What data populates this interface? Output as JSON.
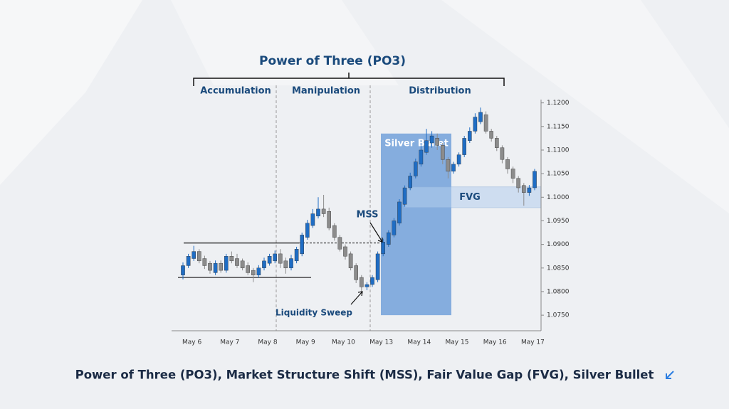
{
  "chart_data": {
    "type": "candlestick",
    "title": "Power of Three (PO3)",
    "phases": [
      "Accumulation",
      "Manipulation",
      "Distribution"
    ],
    "caption": "Power of Three (PO3), Market Structure Shift (MSS), Fair Value Gap (FVG), Silver Bullet",
    "categories": [
      null,
      "May 6",
      null,
      null,
      null,
      null,
      null,
      null,
      "May 7",
      null,
      null,
      null,
      null,
      null,
      null,
      "May 8",
      null,
      null,
      null,
      null,
      null,
      null,
      "May 9",
      null,
      null,
      null,
      null,
      null,
      null,
      "May 10",
      null,
      null,
      null,
      null,
      null,
      null,
      "May 13",
      null,
      null,
      null,
      null,
      null,
      null,
      "May 14",
      null,
      null,
      null,
      null,
      null,
      null,
      "May 15",
      null,
      null,
      null,
      null,
      null,
      null,
      "May 16",
      null,
      null,
      null,
      null,
      null,
      null,
      "May 17",
      null
    ],
    "open": [
      1.0835,
      1.0855,
      1.087,
      1.0885,
      1.087,
      1.086,
      1.084,
      1.086,
      1.0845,
      1.0875,
      1.087,
      1.0865,
      1.0855,
      1.0845,
      1.0835,
      1.085,
      1.086,
      1.0865,
      1.088,
      1.0865,
      1.085,
      1.0865,
      1.088,
      1.0915,
      1.094,
      1.096,
      1.0975,
      1.097,
      1.094,
      1.0915,
      1.0895,
      1.088,
      1.0855,
      1.083,
      1.081,
      1.0815,
      1.0825,
      1.088,
      1.09,
      1.092,
      1.0945,
      1.0985,
      1.102,
      1.1045,
      1.107,
      1.1095,
      1.1115,
      1.1125,
      1.111,
      1.108,
      1.1055,
      1.107,
      1.109,
      1.112,
      1.114,
      1.116,
      1.1175,
      1.114,
      1.1125,
      1.1105,
      1.108,
      1.106,
      1.104,
      1.1025,
      1.101,
      1.102
    ],
    "high": [
      1.0862,
      1.088,
      1.0897,
      1.089,
      1.0876,
      1.0865,
      1.0866,
      1.0866,
      1.088,
      1.0885,
      1.088,
      1.087,
      1.0862,
      1.085,
      1.0856,
      1.0872,
      1.088,
      1.0887,
      1.089,
      1.0872,
      1.0878,
      1.0895,
      1.0925,
      1.0952,
      1.0975,
      1.1,
      1.1005,
      1.0978,
      1.0945,
      1.092,
      1.09,
      1.0885,
      1.086,
      1.0835,
      1.082,
      1.0835,
      1.0885,
      1.0912,
      1.093,
      1.0956,
      1.0996,
      1.1025,
      1.1052,
      1.1082,
      1.111,
      1.1145,
      1.114,
      1.1135,
      1.1115,
      1.1085,
      1.1075,
      1.1095,
      1.113,
      1.1148,
      1.1178,
      1.119,
      1.1182,
      1.1145,
      1.113,
      1.111,
      1.1085,
      1.1065,
      1.1045,
      1.103,
      1.1026,
      1.106
    ],
    "low": [
      1.0826,
      1.085,
      1.0865,
      1.086,
      1.0848,
      1.0838,
      1.0835,
      1.084,
      1.084,
      1.086,
      1.085,
      1.0845,
      1.0835,
      1.082,
      1.083,
      1.0845,
      1.0855,
      1.086,
      1.085,
      1.0838,
      1.0845,
      1.086,
      1.0875,
      1.091,
      1.0935,
      1.0955,
      1.0958,
      1.093,
      1.0908,
      1.0885,
      1.0868,
      1.0845,
      1.0818,
      1.08,
      1.0803,
      1.081,
      1.082,
      1.0875,
      1.0895,
      1.0915,
      1.094,
      1.098,
      1.1015,
      1.104,
      1.1065,
      1.109,
      1.1105,
      1.11,
      1.107,
      1.104,
      1.105,
      1.1065,
      1.1085,
      1.1115,
      1.1135,
      1.1155,
      1.1135,
      1.1118,
      1.1098,
      1.1072,
      1.105,
      1.103,
      1.101,
      1.0982,
      1.1003,
      1.1015
    ],
    "close": [
      1.0855,
      1.0875,
      1.0885,
      1.0865,
      1.0855,
      1.0845,
      1.086,
      1.0845,
      1.0875,
      1.0865,
      1.0855,
      1.085,
      1.084,
      1.0835,
      1.085,
      1.0865,
      1.0875,
      1.088,
      1.086,
      1.085,
      1.087,
      1.089,
      1.092,
      1.0945,
      1.0965,
      1.0975,
      1.0965,
      1.0935,
      1.0915,
      1.089,
      1.0875,
      1.085,
      1.0825,
      1.081,
      1.0815,
      1.083,
      1.088,
      1.0905,
      1.0925,
      1.095,
      1.099,
      1.102,
      1.1045,
      1.1075,
      1.11,
      1.112,
      1.113,
      1.111,
      1.108,
      1.1055,
      1.107,
      1.109,
      1.1125,
      1.114,
      1.117,
      1.118,
      1.114,
      1.1125,
      1.1105,
      1.108,
      1.106,
      1.104,
      1.102,
      1.101,
      1.102,
      1.1055
    ],
    "up_color": "#1f6dc4",
    "down_color": "#8c8c8c",
    "ylim": [
      1.0717,
      1.1207
    ],
    "yticks": [
      {
        "value": 1.075,
        "label": "1.0750"
      },
      {
        "value": 1.08,
        "label": "1.0800"
      },
      {
        "value": 1.085,
        "label": "1.0850"
      },
      {
        "value": 1.09,
        "label": "1.0900"
      },
      {
        "value": 1.095,
        "label": "1.0950"
      },
      {
        "value": 1.1,
        "label": "1.1000"
      },
      {
        "value": 1.105,
        "label": "1.1050"
      },
      {
        "value": 1.11,
        "label": "1.1100"
      },
      {
        "value": 1.115,
        "label": "1.1150"
      },
      {
        "value": 1.12,
        "label": "1.1200"
      }
    ],
    "range_high": 1.0903,
    "range_low": 1.083,
    "silver_bullet": {
      "label": "Silver Bullet",
      "range": [
        1.075,
        1.1135
      ]
    },
    "fvg": {
      "label": "FVG",
      "range": [
        1.0978,
        1.1022
      ]
    },
    "mss": "MSS",
    "liquidity_sweep": "Liquidity Sweep"
  }
}
